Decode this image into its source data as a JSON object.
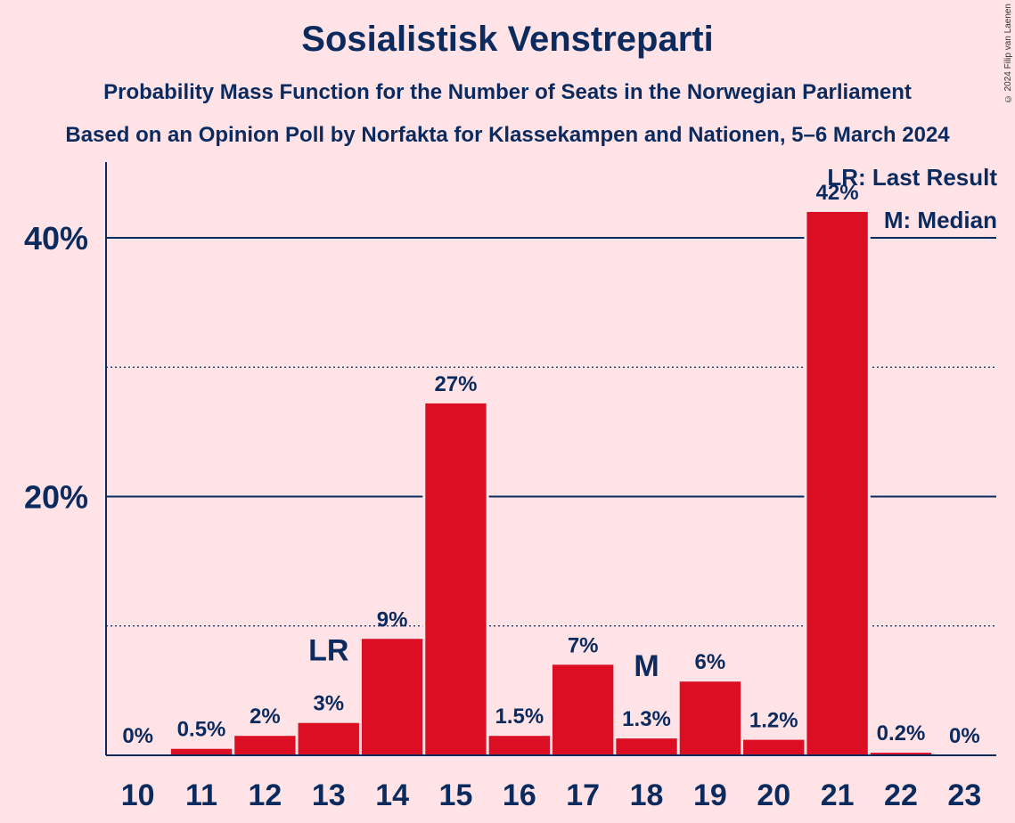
{
  "title": "Sosialistisk Venstreparti",
  "subtitle1": "Probability Mass Function for the Number of Seats in the Norwegian Parliament",
  "subtitle2": "Based on an Opinion Poll by Norfakta for Klassekampen and Nationen, 5–6 March 2024",
  "copyright": "© 2024 Filip van Laenen",
  "legend": {
    "lr": "LR: Last Result",
    "median": "M: Median"
  },
  "colors": {
    "bar": "#DC0E24",
    "text": "#0B2A5E",
    "background": "#FFE3E6"
  },
  "chart_data": {
    "type": "bar",
    "categories": [
      "10",
      "11",
      "12",
      "13",
      "14",
      "15",
      "16",
      "17",
      "18",
      "19",
      "20",
      "21",
      "22",
      "23"
    ],
    "values": [
      0,
      0.5,
      1.5,
      2.5,
      9,
      27.2,
      1.5,
      7,
      1.3,
      5.7,
      1.2,
      42,
      0.2,
      0
    ],
    "value_labels": [
      "0%",
      "0.5%",
      "2%",
      "3%",
      "9%",
      "27%",
      "1.5%",
      "7%",
      "1.3%",
      "6%",
      "1.2%",
      "42%",
      "0.2%",
      "0%"
    ],
    "ylim": [
      0,
      46
    ],
    "yticks": [
      {
        "value": 20,
        "label": "20%"
      },
      {
        "value": 40,
        "label": "40%"
      }
    ],
    "minor_gridlines": [
      10,
      30
    ],
    "markers": [
      {
        "category": "13",
        "label": "LR"
      },
      {
        "category": "18",
        "label": "M"
      }
    ]
  }
}
